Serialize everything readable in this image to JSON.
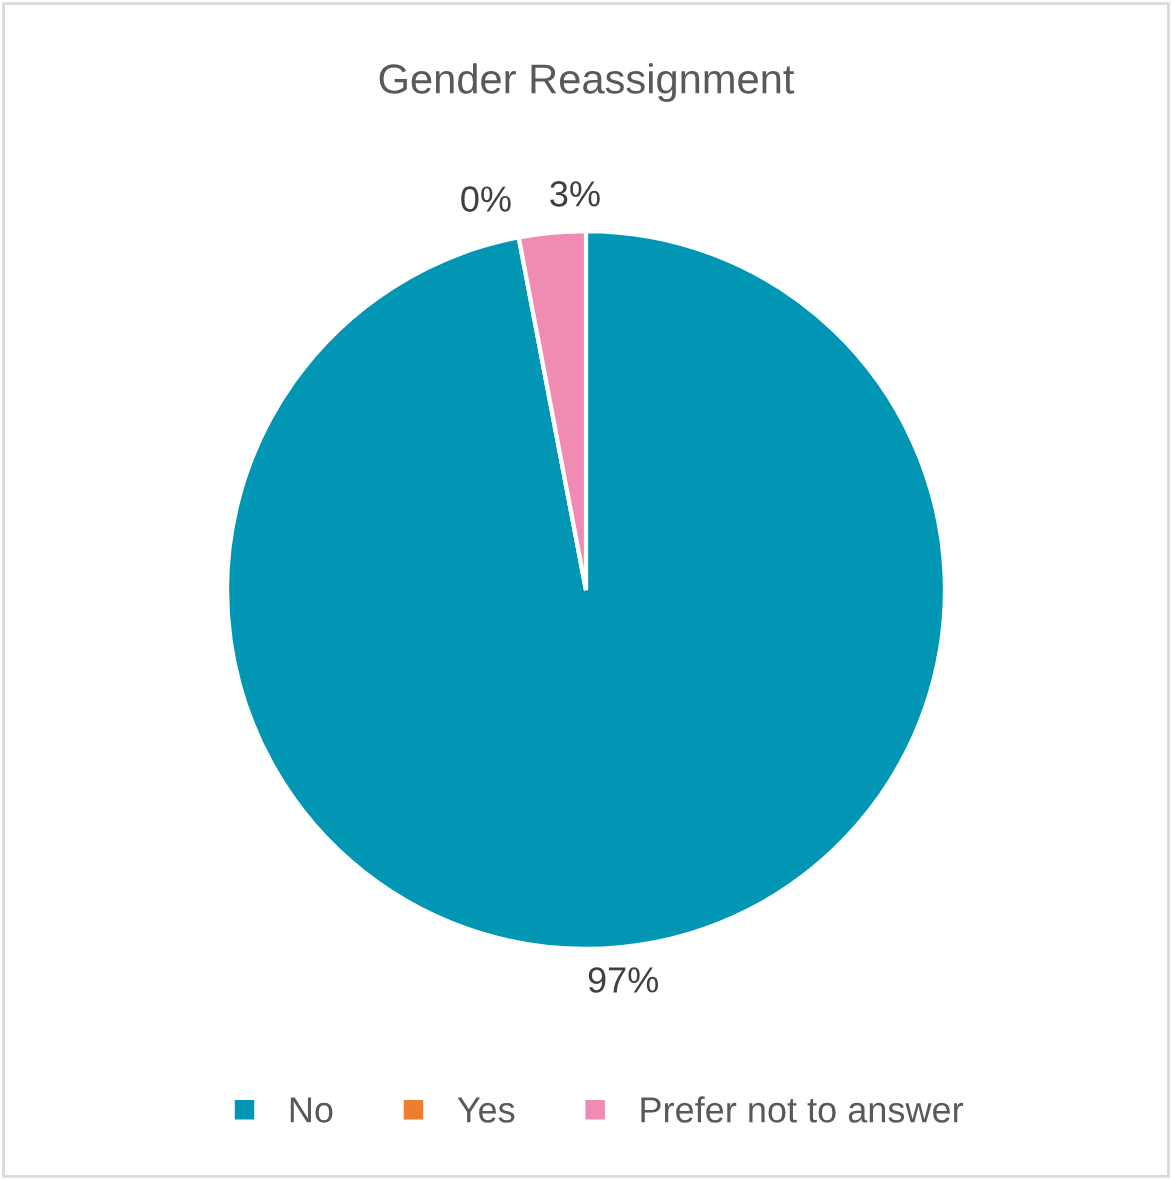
{
  "chart_data": {
    "type": "pie",
    "title": "Gender Reassignment",
    "categories": [
      "No",
      "Yes",
      "Prefer not to answer"
    ],
    "values": [
      97,
      0,
      3
    ],
    "colors": [
      "#0096b4",
      "#ed7d31",
      "#f08cb4"
    ],
    "value_labels": [
      "97%",
      "0%",
      "3%"
    ],
    "legend": "bottom"
  }
}
